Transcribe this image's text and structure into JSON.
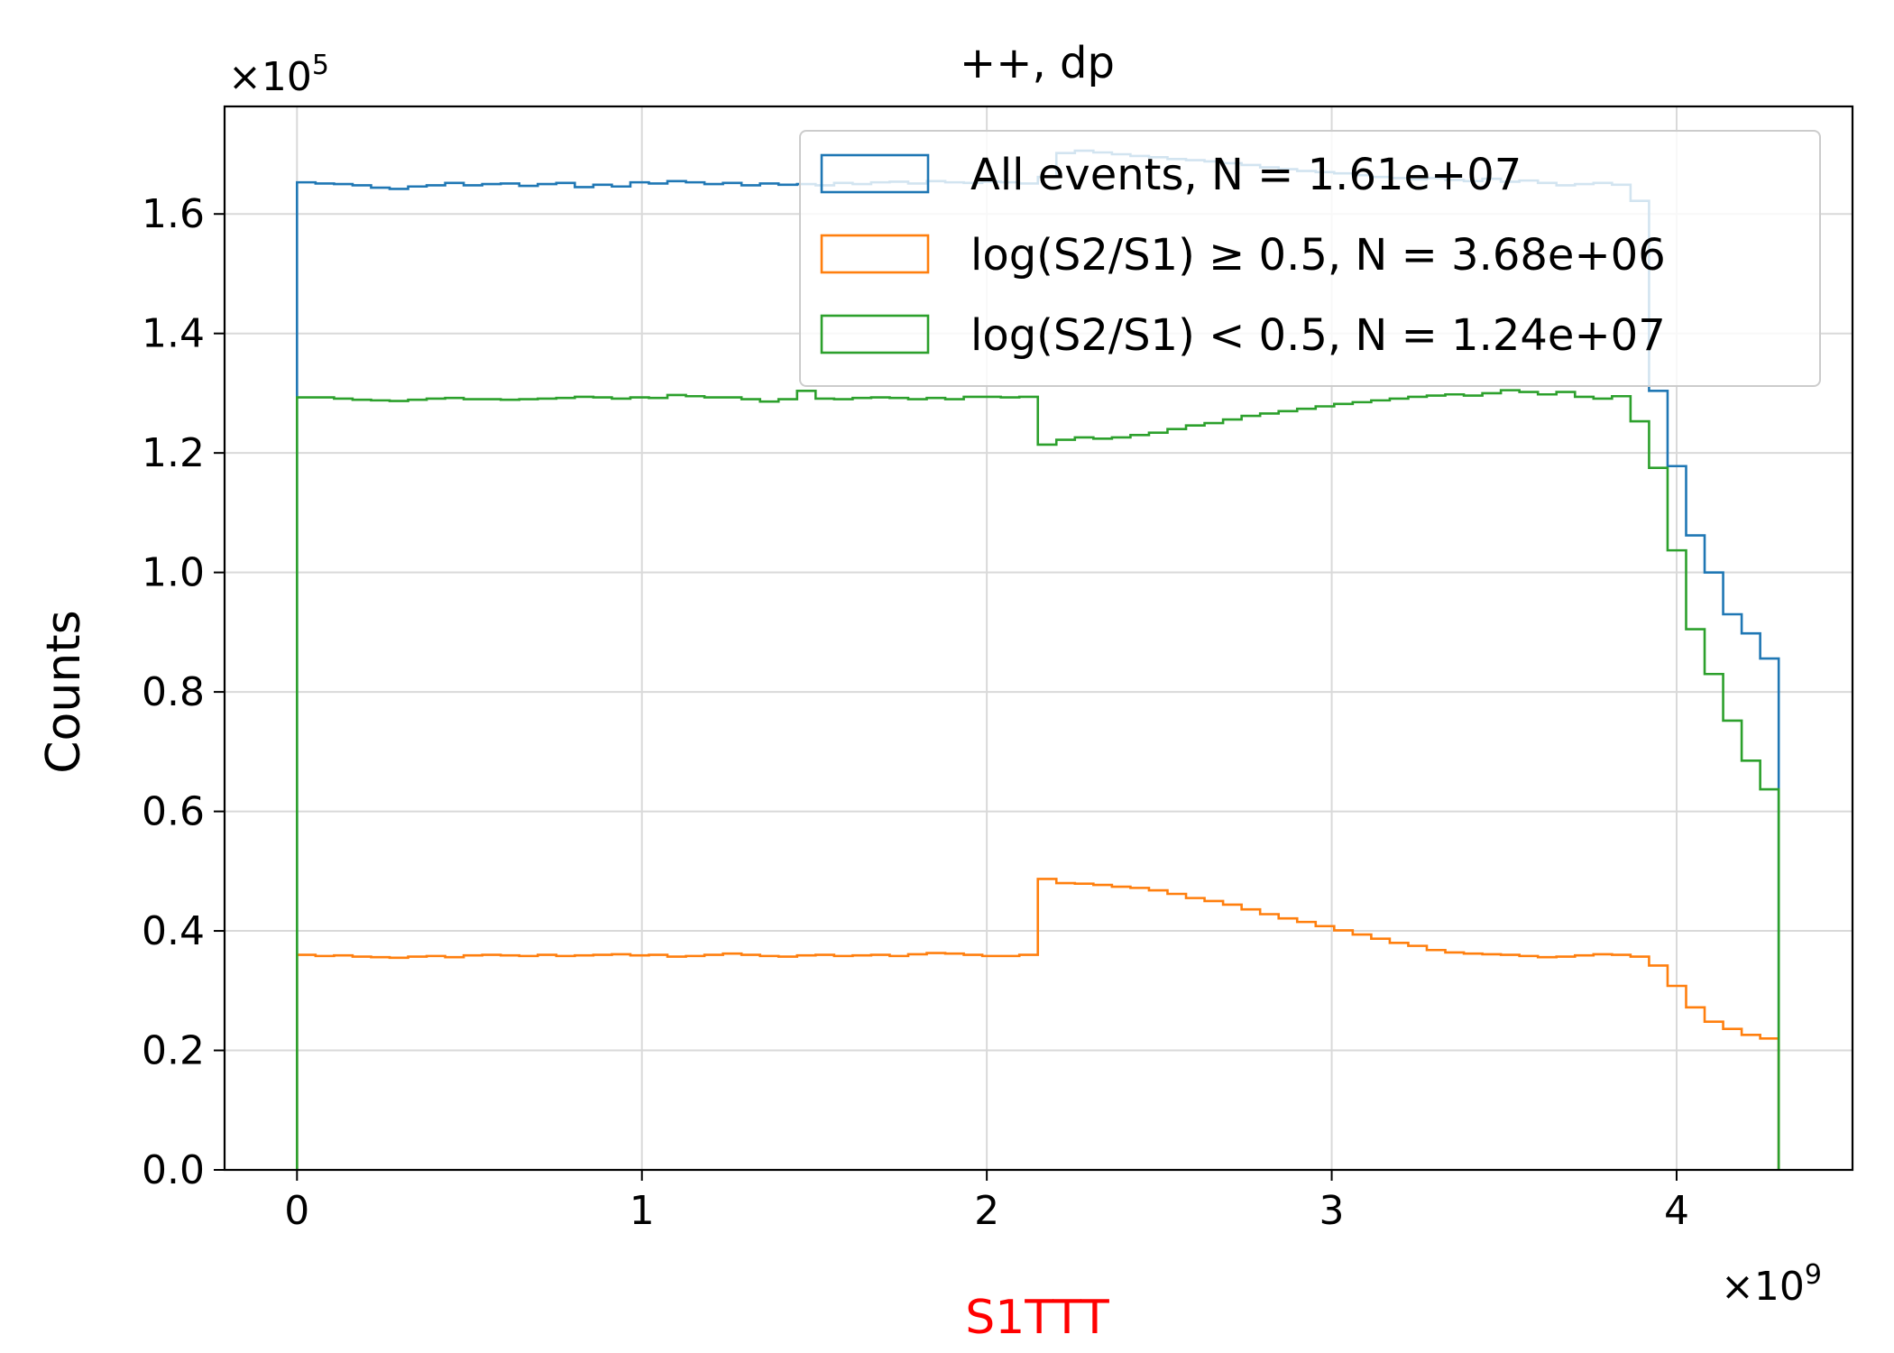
{
  "chart_data": {
    "type": "histogram-step",
    "title": "++, dp",
    "xlabel": "S1TTT",
    "ylabel": "Counts",
    "x_offset_text": "×10^9",
    "y_offset_text": "×10^5",
    "xlim": [
      -0.21,
      4.51
    ],
    "ylim": [
      0.0,
      1.78
    ],
    "x_ticks": [
      0,
      1,
      2,
      3,
      4
    ],
    "x_tick_labels": [
      "0",
      "1",
      "2",
      "3",
      "4"
    ],
    "y_ticks": [
      0.0,
      0.2,
      0.4,
      0.6,
      0.8,
      1.0,
      1.2,
      1.4,
      1.6
    ],
    "y_tick_labels": [
      "0.0",
      "0.2",
      "0.4",
      "0.6",
      "0.8",
      "1.0",
      "1.2",
      "1.4",
      "1.6"
    ],
    "grid": true,
    "legend_position": "upper right",
    "x_unit_note": "bin edges in units of 1e9",
    "y_unit_note": "counts in units of 1e5",
    "bin_edges": [
      0.0,
      0.0537,
      0.1074,
      0.1611,
      0.2148,
      0.2685,
      0.3222,
      0.3759,
      0.4296,
      0.4833,
      0.537,
      0.5907,
      0.6444,
      0.6981,
      0.7518,
      0.8055,
      0.8592,
      0.9129,
      0.9666,
      1.0203,
      1.074,
      1.1277,
      1.1814,
      1.2351,
      1.2888,
      1.3425,
      1.3962,
      1.4499,
      1.5036,
      1.5573,
      1.611,
      1.6647,
      1.7184,
      1.7721,
      1.8258,
      1.8795,
      1.9332,
      1.9869,
      2.0406,
      2.0943,
      2.148,
      2.2017,
      2.2554,
      2.3091,
      2.3628,
      2.4165,
      2.4702,
      2.5239,
      2.5776,
      2.6313,
      2.685,
      2.7387,
      2.7924,
      2.8461,
      2.8998,
      2.9535,
      3.0072,
      3.0609,
      3.1146,
      3.1683,
      3.222,
      3.2757,
      3.3294,
      3.3831,
      3.4368,
      3.4905,
      3.5442,
      3.5979,
      3.6516,
      3.7053,
      3.759,
      3.8127,
      3.8664,
      3.9201,
      3.9738,
      4.0275,
      4.0812,
      4.1349,
      4.1886,
      4.2423,
      4.296
    ],
    "series": [
      {
        "name": "All events, N = 1.61e+07",
        "color": "#1f77b4",
        "values": [
          1.653,
          1.651,
          1.65,
          1.648,
          1.644,
          1.642,
          1.646,
          1.648,
          1.652,
          1.648,
          1.65,
          1.651,
          1.647,
          1.65,
          1.652,
          1.645,
          1.649,
          1.646,
          1.653,
          1.651,
          1.655,
          1.653,
          1.65,
          1.652,
          1.648,
          1.651,
          1.649,
          1.65,
          1.648,
          1.652,
          1.65,
          1.653,
          1.654,
          1.651,
          1.655,
          1.653,
          1.652,
          1.654,
          1.653,
          1.651,
          1.662,
          1.702,
          1.706,
          1.703,
          1.7,
          1.697,
          1.695,
          1.692,
          1.69,
          1.688,
          1.685,
          1.682,
          1.678,
          1.675,
          1.672,
          1.67,
          1.668,
          1.665,
          1.662,
          1.66,
          1.658,
          1.66,
          1.657,
          1.655,
          1.659,
          1.654,
          1.656,
          1.652,
          1.648,
          1.65,
          1.652,
          1.649,
          1.622,
          1.304,
          1.178,
          1.062,
          1.0,
          0.93,
          0.898,
          0.856
        ]
      },
      {
        "name": "log(S2/S1) ≥ 0.5, N = 3.68e+06",
        "color": "#ff7f0e",
        "values": [
          0.36,
          0.358,
          0.359,
          0.357,
          0.356,
          0.355,
          0.357,
          0.358,
          0.356,
          0.359,
          0.36,
          0.359,
          0.358,
          0.36,
          0.358,
          0.359,
          0.36,
          0.361,
          0.359,
          0.36,
          0.357,
          0.358,
          0.36,
          0.362,
          0.36,
          0.358,
          0.357,
          0.359,
          0.36,
          0.358,
          0.359,
          0.36,
          0.358,
          0.361,
          0.363,
          0.362,
          0.36,
          0.358,
          0.358,
          0.36,
          0.487,
          0.48,
          0.479,
          0.477,
          0.474,
          0.472,
          0.468,
          0.462,
          0.455,
          0.45,
          0.444,
          0.436,
          0.428,
          0.421,
          0.415,
          0.408,
          0.401,
          0.394,
          0.387,
          0.38,
          0.375,
          0.368,
          0.364,
          0.362,
          0.361,
          0.36,
          0.358,
          0.356,
          0.357,
          0.359,
          0.361,
          0.36,
          0.357,
          0.342,
          0.308,
          0.272,
          0.248,
          0.236,
          0.226,
          0.22
        ]
      },
      {
        "name": "log(S2/S1) < 0.5, N = 1.24e+07",
        "color": "#2ca02c",
        "values": [
          1.293,
          1.293,
          1.291,
          1.289,
          1.288,
          1.287,
          1.289,
          1.291,
          1.292,
          1.29,
          1.29,
          1.289,
          1.29,
          1.291,
          1.292,
          1.294,
          1.293,
          1.291,
          1.293,
          1.292,
          1.297,
          1.295,
          1.293,
          1.293,
          1.29,
          1.286,
          1.29,
          1.304,
          1.291,
          1.29,
          1.292,
          1.293,
          1.292,
          1.29,
          1.292,
          1.29,
          1.294,
          1.294,
          1.293,
          1.294,
          1.214,
          1.222,
          1.226,
          1.224,
          1.226,
          1.23,
          1.234,
          1.24,
          1.246,
          1.25,
          1.256,
          1.262,
          1.266,
          1.27,
          1.274,
          1.278,
          1.282,
          1.285,
          1.288,
          1.291,
          1.294,
          1.296,
          1.298,
          1.296,
          1.3,
          1.305,
          1.302,
          1.298,
          1.302,
          1.294,
          1.291,
          1.295,
          1.253,
          1.175,
          1.037,
          0.905,
          0.83,
          0.752,
          0.685,
          0.637
        ]
      }
    ]
  }
}
